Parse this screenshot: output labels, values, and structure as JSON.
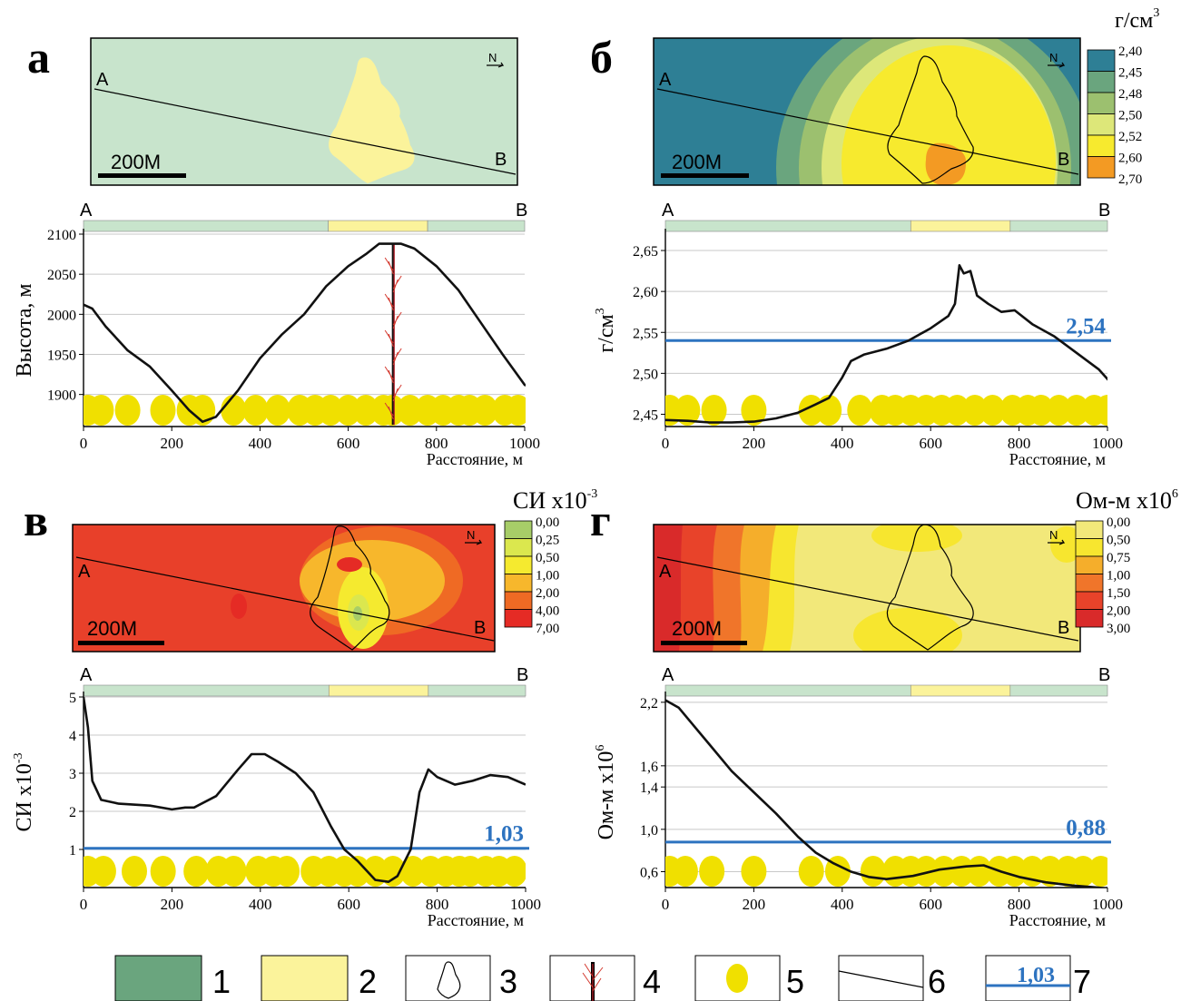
{
  "panels": {
    "a": {
      "letter": "а"
    },
    "b": {
      "letter": "б",
      "unit": "г/см",
      "unit_sup": "3",
      "scale": [
        "2,40",
        "2,45",
        "2,48",
        "2,50",
        "2,52",
        "2,60",
        "2,70"
      ],
      "scale_colors": [
        "#2e7f95",
        "#6aa57e",
        "#9cc06f",
        "#dde779",
        "#f7ea2e",
        "#f39a23"
      ]
    },
    "c": {
      "letter": "в",
      "unit": "СИ x10",
      "unit_sup": "-3",
      "scale": [
        "0,00",
        "0,25",
        "0,50",
        "1,00",
        "2,00",
        "4,00",
        "7,00"
      ],
      "scale_colors": [
        "#a7cd68",
        "#dbe74e",
        "#f5ea2f",
        "#f7b72c",
        "#ef6a24",
        "#e52b25"
      ]
    },
    "d": {
      "letter": "г",
      "unit": "Ом-м x10",
      "unit_sup": "6",
      "scale": [
        "0,00",
        "0,50",
        "0,75",
        "1,00",
        "1,50",
        "2,00",
        "3,00"
      ],
      "scale_colors": [
        "#f2e87a",
        "#f7e62f",
        "#f5ae2b",
        "#f0752a",
        "#e8432a",
        "#d92a2a"
      ]
    }
  },
  "map_labels": {
    "a": "A",
    "b": "B",
    "north": "N",
    "scale_bar": "200M"
  },
  "profile_labels": {
    "start": "A",
    "end": "B",
    "x_axis_title": "Расстояние, м"
  },
  "colors": {
    "zone1": "#6aa57e",
    "host": "#c8e4cc",
    "zone2": "#fbf39b",
    "threshold": "#2d73c0",
    "point": "#f0e000"
  },
  "chart_data": [
    {
      "type": "line",
      "panel": "а",
      "ylabel": "Высота, м",
      "xlabel": "Расстояние, м",
      "xlim": [
        0,
        1000
      ],
      "ylim": [
        1860,
        2100
      ],
      "xticks": [
        "0",
        "200",
        "400",
        "600",
        "800",
        "1000"
      ],
      "yticks": [
        "1900",
        "1950",
        "2000",
        "2050",
        "2100"
      ],
      "x": [
        0,
        20,
        50,
        100,
        150,
        200,
        240,
        270,
        300,
        350,
        400,
        450,
        500,
        550,
        600,
        640,
        670,
        700,
        720,
        750,
        800,
        850,
        900,
        950,
        1000,
        1010
      ],
      "y": [
        2012,
        2007,
        1985,
        1955,
        1935,
        1905,
        1880,
        1866,
        1872,
        1905,
        1945,
        1975,
        2000,
        2035,
        2060,
        2075,
        2088,
        2088,
        2088,
        2082,
        2060,
        2030,
        1990,
        1950,
        1912,
        1910
      ],
      "points_x": [
        10,
        40,
        100,
        180,
        240,
        270,
        340,
        390,
        440,
        490,
        525,
        560,
        600,
        640,
        680,
        700,
        740,
        780,
        815,
        850,
        875,
        910,
        955,
        985
      ],
      "fault_x": 702
    },
    {
      "type": "line",
      "panel": "б",
      "ylabel": "г/см3",
      "xlabel": "Расстояние, м",
      "xlim": [
        0,
        1000
      ],
      "ylim": [
        2.435,
        2.67
      ],
      "xticks": [
        "0",
        "200",
        "400",
        "600",
        "800",
        "1000"
      ],
      "yticks": [
        "2,45",
        "2,50",
        "2,55",
        "2,60",
        "2,65"
      ],
      "threshold": 2.54,
      "threshold_label": "2,54",
      "x": [
        0,
        50,
        100,
        150,
        200,
        250,
        300,
        340,
        370,
        400,
        420,
        450,
        500,
        550,
        600,
        640,
        655,
        665,
        675,
        690,
        705,
        730,
        760,
        790,
        830,
        880,
        930,
        980,
        1010
      ],
      "y": [
        2.443,
        2.442,
        2.44,
        2.44,
        2.441,
        2.445,
        2.452,
        2.462,
        2.47,
        2.495,
        2.515,
        2.523,
        2.53,
        2.54,
        2.555,
        2.57,
        2.585,
        2.632,
        2.622,
        2.625,
        2.595,
        2.585,
        2.575,
        2.577,
        2.56,
        2.545,
        2.525,
        2.505,
        2.487
      ],
      "points_x": [
        10,
        50,
        110,
        200,
        330,
        370,
        440,
        490,
        520,
        555,
        590,
        625,
        660,
        700,
        740,
        785,
        820,
        850,
        890,
        930,
        970,
        1000
      ]
    },
    {
      "type": "line",
      "panel": "в",
      "ylabel": "СИ x10-3",
      "xlabel": "Расстояние, м",
      "xlim": [
        0,
        1000
      ],
      "ylim": [
        0,
        5
      ],
      "xticks": [
        "0",
        "200",
        "400",
        "600",
        "800",
        "1000"
      ],
      "yticks": [
        "1",
        "2",
        "3",
        "4",
        "5"
      ],
      "threshold": 1.03,
      "threshold_label": "1,03",
      "x": [
        0,
        10,
        20,
        40,
        80,
        150,
        200,
        230,
        250,
        300,
        350,
        380,
        410,
        440,
        480,
        520,
        560,
        590,
        620,
        660,
        690,
        710,
        740,
        760,
        780,
        800,
        840,
        880,
        920,
        960,
        1000
      ],
      "y": [
        5.0,
        4.2,
        2.8,
        2.3,
        2.2,
        2.15,
        2.05,
        2.1,
        2.1,
        2.4,
        3.1,
        3.5,
        3.5,
        3.3,
        3.0,
        2.5,
        1.6,
        1.0,
        0.7,
        0.2,
        0.15,
        0.3,
        1.0,
        2.5,
        3.1,
        2.9,
        2.7,
        2.8,
        2.95,
        2.9,
        2.7
      ],
      "points_x": [
        10,
        45,
        115,
        180,
        255,
        305,
        340,
        395,
        430,
        460,
        520,
        555,
        590,
        620,
        660,
        700,
        745,
        785,
        820,
        850,
        875,
        910,
        940,
        975
      ]
    },
    {
      "type": "line",
      "panel": "г",
      "ylabel": "Ом-м x106",
      "xlabel": "Расстояние, м",
      "xlim": [
        0,
        1000
      ],
      "ylim": [
        0.45,
        2.25
      ],
      "xticks": [
        "0",
        "200",
        "400",
        "600",
        "800",
        "1000"
      ],
      "yticks": [
        "0,6",
        "1,0",
        "1,4",
        "1,6",
        "2,2"
      ],
      "threshold": 0.88,
      "threshold_label": "0,88",
      "x": [
        0,
        30,
        60,
        100,
        150,
        200,
        250,
        300,
        340,
        380,
        420,
        460,
        500,
        560,
        620,
        680,
        720,
        760,
        800,
        860,
        920,
        980,
        1000
      ],
      "y": [
        2.22,
        2.15,
        2.0,
        1.8,
        1.55,
        1.35,
        1.15,
        0.93,
        0.78,
        0.68,
        0.6,
        0.55,
        0.53,
        0.56,
        0.62,
        0.65,
        0.66,
        0.6,
        0.55,
        0.5,
        0.47,
        0.45,
        0.44
      ],
      "points_x": [
        10,
        45,
        105,
        200,
        330,
        390,
        470,
        520,
        555,
        590,
        630,
        670,
        710,
        755,
        790,
        830,
        870,
        910,
        945,
        985
      ]
    }
  ],
  "legend": [
    {
      "num": "1",
      "name": "zone1"
    },
    {
      "num": "2",
      "name": "zone2"
    },
    {
      "num": "3",
      "name": "outline"
    },
    {
      "num": "4",
      "name": "fault"
    },
    {
      "num": "5",
      "name": "point"
    },
    {
      "num": "6",
      "name": "profile-line"
    },
    {
      "num": "7",
      "name": "threshold",
      "value": "1,03"
    }
  ]
}
